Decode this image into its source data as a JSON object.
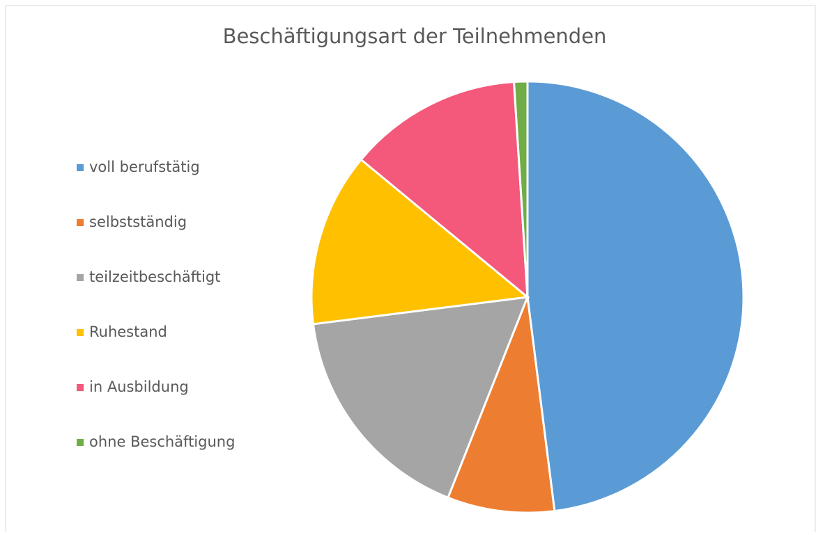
{
  "chart_data": {
    "type": "pie",
    "title": "Beschäftigungsart der Teilnehmenden",
    "categories": [
      "voll berufstätig",
      "selbstständig",
      "teilzeitbeschäftigt",
      "Ruhestand",
      "in Ausbildung",
      "ohne Beschäftigung"
    ],
    "values": [
      48,
      8,
      17,
      13,
      13,
      1
    ],
    "colors": [
      "#5b9bd5",
      "#ed7d31",
      "#a5a5a5",
      "#ffc000",
      "#f4587a",
      "#70ad47"
    ],
    "legend": "left"
  }
}
